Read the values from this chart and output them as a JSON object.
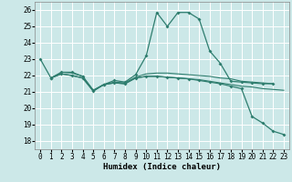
{
  "xlabel": "Humidex (Indice chaleur)",
  "xlim": [
    -0.5,
    23.5
  ],
  "ylim": [
    17.5,
    26.5
  ],
  "xticks": [
    0,
    1,
    2,
    3,
    4,
    5,
    6,
    7,
    8,
    9,
    10,
    11,
    12,
    13,
    14,
    15,
    16,
    17,
    18,
    19,
    20,
    21,
    22,
    23
  ],
  "yticks": [
    18,
    19,
    20,
    21,
    22,
    23,
    24,
    25,
    26
  ],
  "bg_color": "#cce8e8",
  "line_color": "#2e7d6e",
  "grid_color": "#ffffff",
  "line1_x": [
    0,
    1,
    2,
    3,
    4,
    5,
    6,
    7,
    8,
    9,
    10,
    11,
    12,
    13,
    14,
    15,
    16,
    17,
    18,
    19,
    20,
    21,
    22
  ],
  "line1_y": [
    23.0,
    21.85,
    22.2,
    22.2,
    21.95,
    21.1,
    21.45,
    21.7,
    21.6,
    22.05,
    23.2,
    25.85,
    25.0,
    25.85,
    25.85,
    25.45,
    23.5,
    22.75,
    21.65,
    21.6,
    21.55,
    21.5,
    21.5
  ],
  "line2_x": [
    1,
    2,
    3,
    4,
    5,
    6,
    7,
    8,
    9,
    10,
    11,
    12,
    13,
    14,
    15,
    16,
    17,
    18,
    19,
    20,
    21,
    22
  ],
  "line2_y": [
    21.85,
    22.2,
    22.15,
    21.95,
    21.1,
    21.45,
    21.6,
    21.55,
    21.9,
    22.1,
    22.15,
    22.15,
    22.1,
    22.05,
    22.0,
    21.95,
    21.85,
    21.8,
    21.65,
    21.6,
    21.55,
    21.5
  ],
  "line3_x": [
    1,
    2,
    3,
    4,
    5,
    6,
    7,
    8,
    9,
    10,
    11,
    12,
    13,
    14,
    15,
    16,
    17,
    18,
    19,
    20,
    21,
    22,
    23
  ],
  "line3_y": [
    21.85,
    22.1,
    22.0,
    21.85,
    21.05,
    21.45,
    21.55,
    21.5,
    21.85,
    21.95,
    21.95,
    21.9,
    21.85,
    21.8,
    21.75,
    21.65,
    21.55,
    21.45,
    21.35,
    21.3,
    21.2,
    21.15,
    21.1
  ],
  "line4_x": [
    1,
    2,
    3,
    4,
    5,
    6,
    7,
    8,
    9,
    10,
    11,
    12,
    13,
    14,
    15,
    16,
    17,
    18,
    19,
    20,
    21,
    22,
    23
  ],
  "line4_y": [
    21.85,
    22.1,
    22.0,
    21.85,
    21.05,
    21.45,
    21.55,
    21.5,
    21.85,
    21.95,
    21.95,
    21.9,
    21.85,
    21.8,
    21.7,
    21.6,
    21.5,
    21.35,
    21.2,
    19.5,
    19.1,
    18.6,
    18.4
  ]
}
